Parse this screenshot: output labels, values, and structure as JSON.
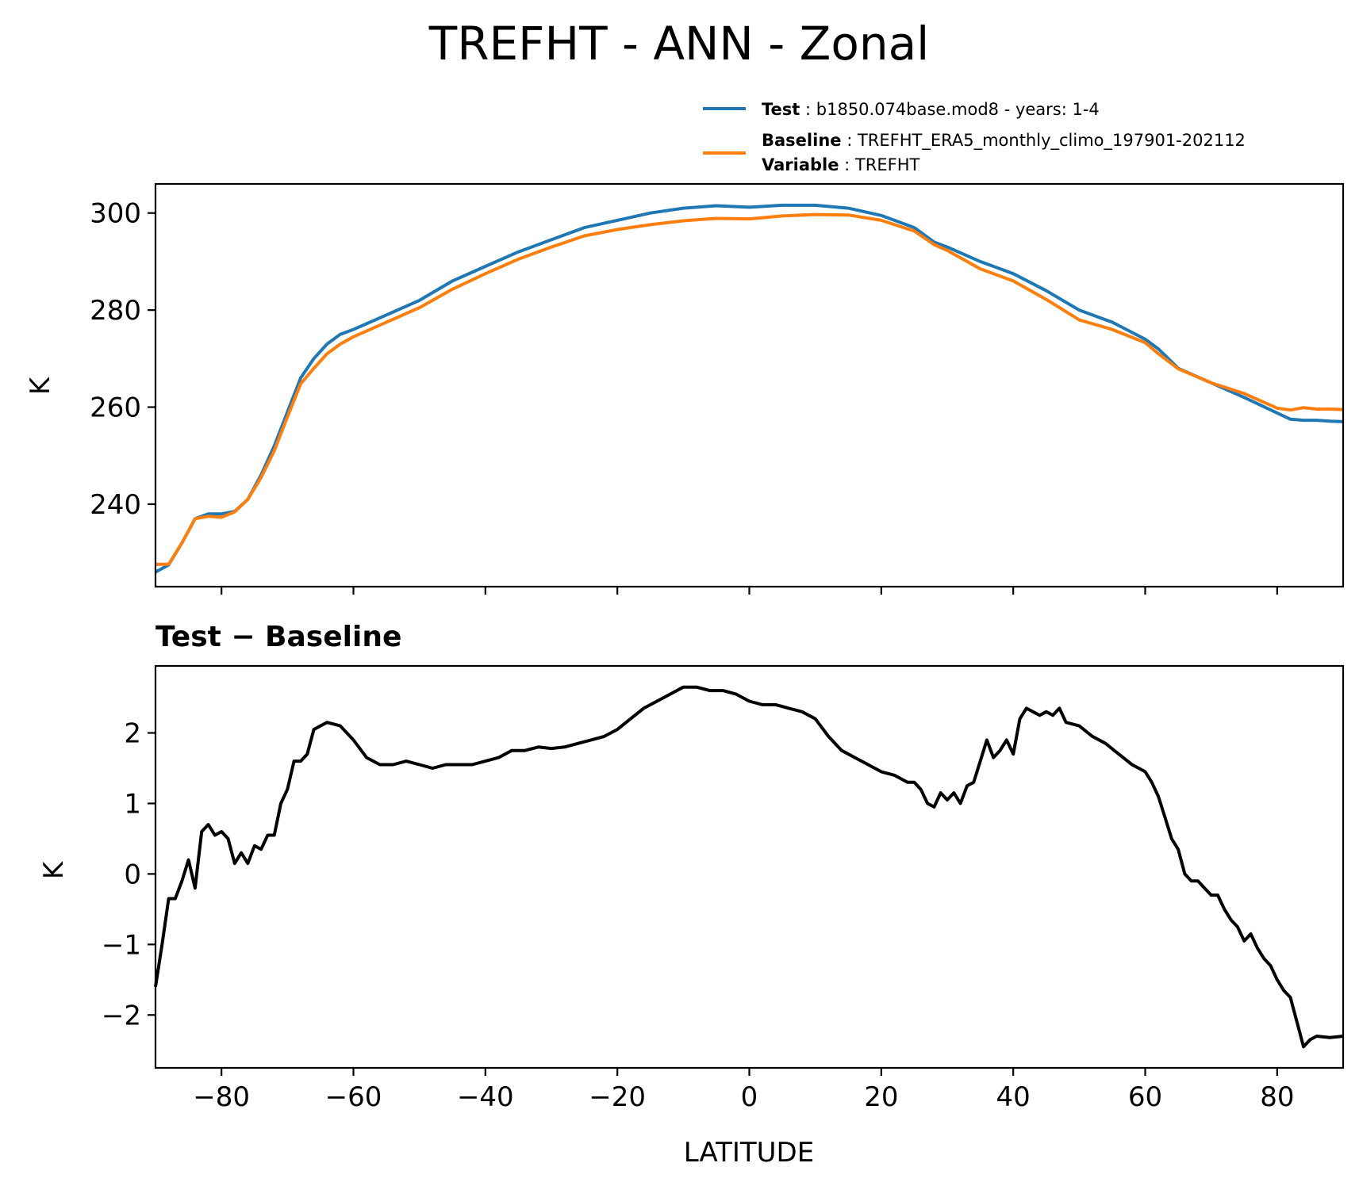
{
  "title": "TREFHT - ANN - Zonal",
  "legend": {
    "test": {
      "key": "Test",
      "text": "b1850.074base.mod8 - years: 1-4",
      "color": "#1f77b4"
    },
    "baseline": {
      "key": "Baseline",
      "text": "TREFHT_ERA5_monthly_climo_197901-202112",
      "color": "#ff7f0e"
    },
    "variable": {
      "key": "Variable",
      "text": "TREFHT"
    }
  },
  "chart_data": [
    {
      "type": "line",
      "title": "TREFHT - ANN - Zonal",
      "xlabel": "",
      "ylabel": "K",
      "xlim": [
        -90,
        90
      ],
      "ylim": [
        223,
        306
      ],
      "xticks": [
        -80,
        -60,
        -40,
        -20,
        0,
        20,
        40,
        60,
        80
      ],
      "yticks": [
        240,
        260,
        280,
        300
      ],
      "ytick_labels": [
        "240",
        "260",
        "280",
        "300"
      ],
      "series": [
        {
          "name": "Test",
          "color": "#1f77b4",
          "x": [
            -90,
            -88,
            -86,
            -84,
            -82,
            -80,
            -78,
            -76,
            -74,
            -72,
            -70,
            -68,
            -66,
            -64,
            -62,
            -60,
            -55,
            -50,
            -45,
            -40,
            -35,
            -30,
            -25,
            -20,
            -15,
            -10,
            -5,
            0,
            5,
            10,
            15,
            20,
            25,
            28,
            30,
            35,
            40,
            45,
            50,
            55,
            60,
            62,
            65,
            70,
            75,
            80,
            82,
            84,
            86,
            88,
            90
          ],
          "values": [
            226,
            227.5,
            232,
            237,
            238,
            238,
            238.5,
            241,
            246,
            252,
            259,
            266,
            270,
            273,
            275,
            276,
            279,
            282,
            286,
            289,
            292,
            294.5,
            297,
            298.5,
            300,
            301,
            301.5,
            301.2,
            301.6,
            301.6,
            301,
            299.5,
            297,
            294,
            293,
            290,
            287.5,
            284,
            280,
            277.5,
            274,
            272,
            268,
            265,
            262,
            258.8,
            257.5,
            257.3,
            257.3,
            257.1,
            257
          ]
        },
        {
          "name": "Baseline",
          "color": "#ff7f0e",
          "x": [
            -90,
            -88,
            -86,
            -84,
            -82,
            -80,
            -78,
            -76,
            -74,
            -72,
            -70,
            -68,
            -66,
            -64,
            -62,
            -60,
            -55,
            -50,
            -45,
            -40,
            -35,
            -30,
            -25,
            -20,
            -15,
            -10,
            -5,
            0,
            5,
            10,
            15,
            20,
            25,
            28,
            30,
            35,
            40,
            45,
            50,
            55,
            60,
            62,
            65,
            70,
            75,
            80,
            82,
            84,
            86,
            88,
            90
          ],
          "values": [
            227.6,
            227.6,
            232,
            237,
            237.5,
            237.3,
            238.4,
            241,
            245.5,
            251,
            258,
            264.8,
            268,
            271,
            273,
            274.5,
            277.5,
            280.5,
            284.3,
            287.5,
            290.5,
            293,
            295.3,
            296.6,
            297.6,
            298.4,
            298.9,
            298.8,
            299.4,
            299.7,
            299.6,
            298.5,
            296.3,
            293.5,
            292.3,
            288.5,
            286,
            282.2,
            278,
            276,
            273.3,
            271,
            267.9,
            265,
            262.8,
            259.8,
            259.4,
            259.9,
            259.6,
            259.6,
            259.5
          ]
        }
      ]
    },
    {
      "type": "line",
      "title": "Test − Baseline",
      "xlabel": "LATITUDE",
      "ylabel": "K",
      "xlim": [
        -90,
        90
      ],
      "ylim": [
        -2.75,
        2.95
      ],
      "xticks": [
        -80,
        -60,
        -40,
        -20,
        0,
        20,
        40,
        60,
        80
      ],
      "xtick_labels": [
        "−80",
        "−60",
        "−40",
        "−20",
        "0",
        "20",
        "40",
        "60",
        "80"
      ],
      "yticks": [
        -2,
        -1,
        0,
        1,
        2
      ],
      "ytick_labels": [
        "−2",
        "−1",
        "0",
        "1",
        "2"
      ],
      "series": [
        {
          "name": "Test − Baseline",
          "color": "#000000",
          "x": [
            -90,
            -89,
            -88,
            -87,
            -86,
            -85,
            -84,
            -83,
            -82,
            -81,
            -80,
            -79,
            -78,
            -77,
            -76,
            -75,
            -74,
            -73,
            -72,
            -71,
            -70,
            -69,
            -68,
            -67,
            -66,
            -65,
            -64,
            -62,
            -60,
            -58,
            -56,
            -54,
            -52,
            -50,
            -48,
            -46,
            -44,
            -42,
            -40,
            -38,
            -36,
            -34,
            -32,
            -30,
            -28,
            -26,
            -24,
            -22,
            -20,
            -18,
            -16,
            -14,
            -12,
            -10,
            -8,
            -6,
            -4,
            -2,
            0,
            2,
            4,
            6,
            8,
            10,
            12,
            14,
            16,
            18,
            20,
            22,
            24,
            25,
            26,
            27,
            28,
            29,
            30,
            31,
            32,
            33,
            34,
            35,
            36,
            37,
            38,
            39,
            40,
            41,
            42,
            43,
            44,
            45,
            46,
            47,
            48,
            50,
            52,
            54,
            56,
            58,
            60,
            61,
            62,
            63,
            64,
            65,
            66,
            67,
            68,
            69,
            70,
            71,
            72,
            73,
            74,
            75,
            76,
            77,
            78,
            79,
            80,
            81,
            82,
            83,
            84,
            85,
            86,
            88,
            90
          ],
          "values": [
            -1.6,
            -1.0,
            -0.35,
            -0.35,
            -0.1,
            0.2,
            -0.2,
            0.6,
            0.7,
            0.55,
            0.6,
            0.5,
            0.15,
            0.3,
            0.15,
            0.4,
            0.35,
            0.55,
            0.55,
            1.0,
            1.2,
            1.6,
            1.6,
            1.7,
            2.05,
            2.1,
            2.15,
            2.1,
            1.9,
            1.65,
            1.55,
            1.55,
            1.6,
            1.55,
            1.5,
            1.55,
            1.55,
            1.55,
            1.6,
            1.65,
            1.75,
            1.75,
            1.8,
            1.78,
            1.8,
            1.85,
            1.9,
            1.95,
            2.05,
            2.2,
            2.35,
            2.45,
            2.55,
            2.65,
            2.65,
            2.6,
            2.6,
            2.55,
            2.45,
            2.4,
            2.4,
            2.35,
            2.3,
            2.2,
            1.95,
            1.75,
            1.65,
            1.55,
            1.45,
            1.4,
            1.3,
            1.3,
            1.2,
            1.0,
            0.95,
            1.15,
            1.05,
            1.15,
            1.0,
            1.25,
            1.3,
            1.6,
            1.9,
            1.65,
            1.75,
            1.9,
            1.7,
            2.2,
            2.35,
            2.3,
            2.25,
            2.3,
            2.25,
            2.35,
            2.15,
            2.1,
            1.95,
            1.85,
            1.7,
            1.55,
            1.45,
            1.3,
            1.1,
            0.8,
            0.5,
            0.35,
            0.0,
            -0.1,
            -0.1,
            -0.2,
            -0.3,
            -0.3,
            -0.5,
            -0.65,
            -0.75,
            -0.95,
            -0.85,
            -1.05,
            -1.2,
            -1.3,
            -1.5,
            -1.65,
            -1.75,
            -2.1,
            -2.45,
            -2.35,
            -2.3,
            -2.32,
            -2.3
          ]
        }
      ]
    }
  ]
}
